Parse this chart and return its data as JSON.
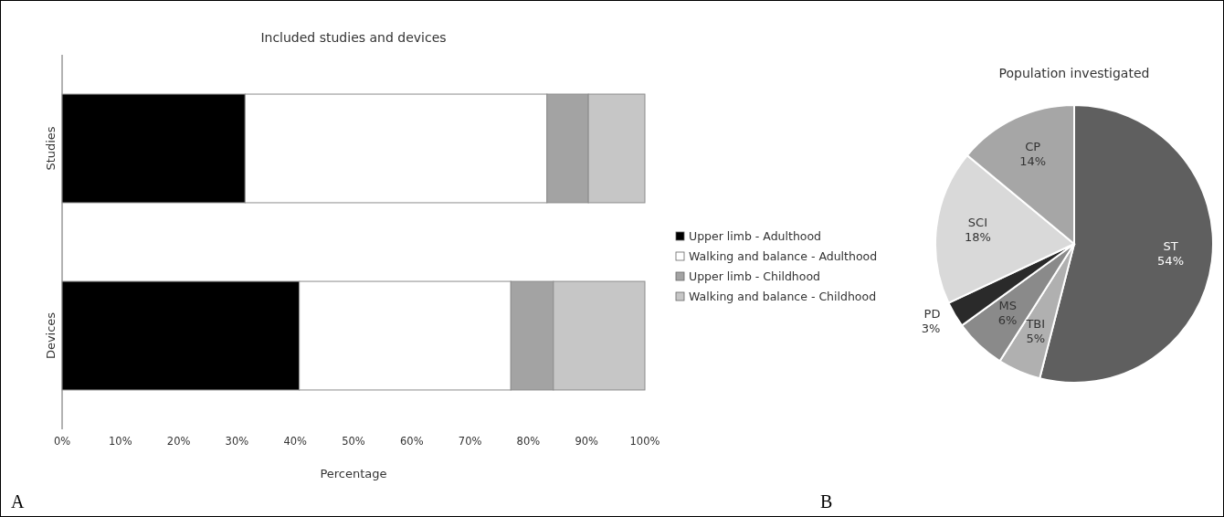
{
  "chart_data": [
    {
      "type": "bar",
      "orientation": "horizontal",
      "stacked": true,
      "title": "Included studies and devices",
      "xlabel": "Percentage",
      "categories": [
        "Studies",
        "Devices"
      ],
      "series": [
        {
          "name": "Upper limb - Adulthood",
          "color": "#000000",
          "values": [
            31.4,
            40.7
          ]
        },
        {
          "name": "Walking and balance - Adulthood",
          "color": "#ffffff",
          "values": [
            51.8,
            36.3
          ]
        },
        {
          "name": "Upper limb - Childhood",
          "color": "#a3a3a3",
          "values": [
            7.1,
            7.3
          ]
        },
        {
          "name": "Walking and balance - Childhood",
          "color": "#c6c6c6",
          "values": [
            9.7,
            15.7
          ]
        }
      ],
      "xlim": [
        0,
        100
      ],
      "xticks": [
        {
          "value": 0,
          "label": "0%"
        },
        {
          "value": 10,
          "label": "10%"
        },
        {
          "value": 20,
          "label": "20%"
        },
        {
          "value": 30,
          "label": "30%"
        },
        {
          "value": 40,
          "label": "40%"
        },
        {
          "value": 50,
          "label": "50%"
        },
        {
          "value": 60,
          "label": "60%"
        },
        {
          "value": 70,
          "label": "70%"
        },
        {
          "value": 80,
          "label": "80%"
        },
        {
          "value": 90,
          "label": "90%"
        },
        {
          "value": 100,
          "label": "100%"
        }
      ],
      "grid": false,
      "legend": "right",
      "annotations": [
        "A"
      ]
    },
    {
      "type": "pie",
      "title": "Population investigated",
      "categories": [
        "ST",
        "TBI",
        "MS",
        "PD",
        "SCI",
        "CP"
      ],
      "values": [
        54,
        5,
        6,
        3,
        18,
        14
      ],
      "colors": [
        "#5f5f5f",
        "#b0b0b0",
        "#8a8a8a",
        "#2a2a2a",
        "#d9d9d9",
        "#a6a6a6"
      ],
      "value_labels": [
        "54%",
        "5%",
        "6%",
        "3%",
        "18%",
        "14%"
      ],
      "annotations": [
        "B"
      ]
    }
  ]
}
